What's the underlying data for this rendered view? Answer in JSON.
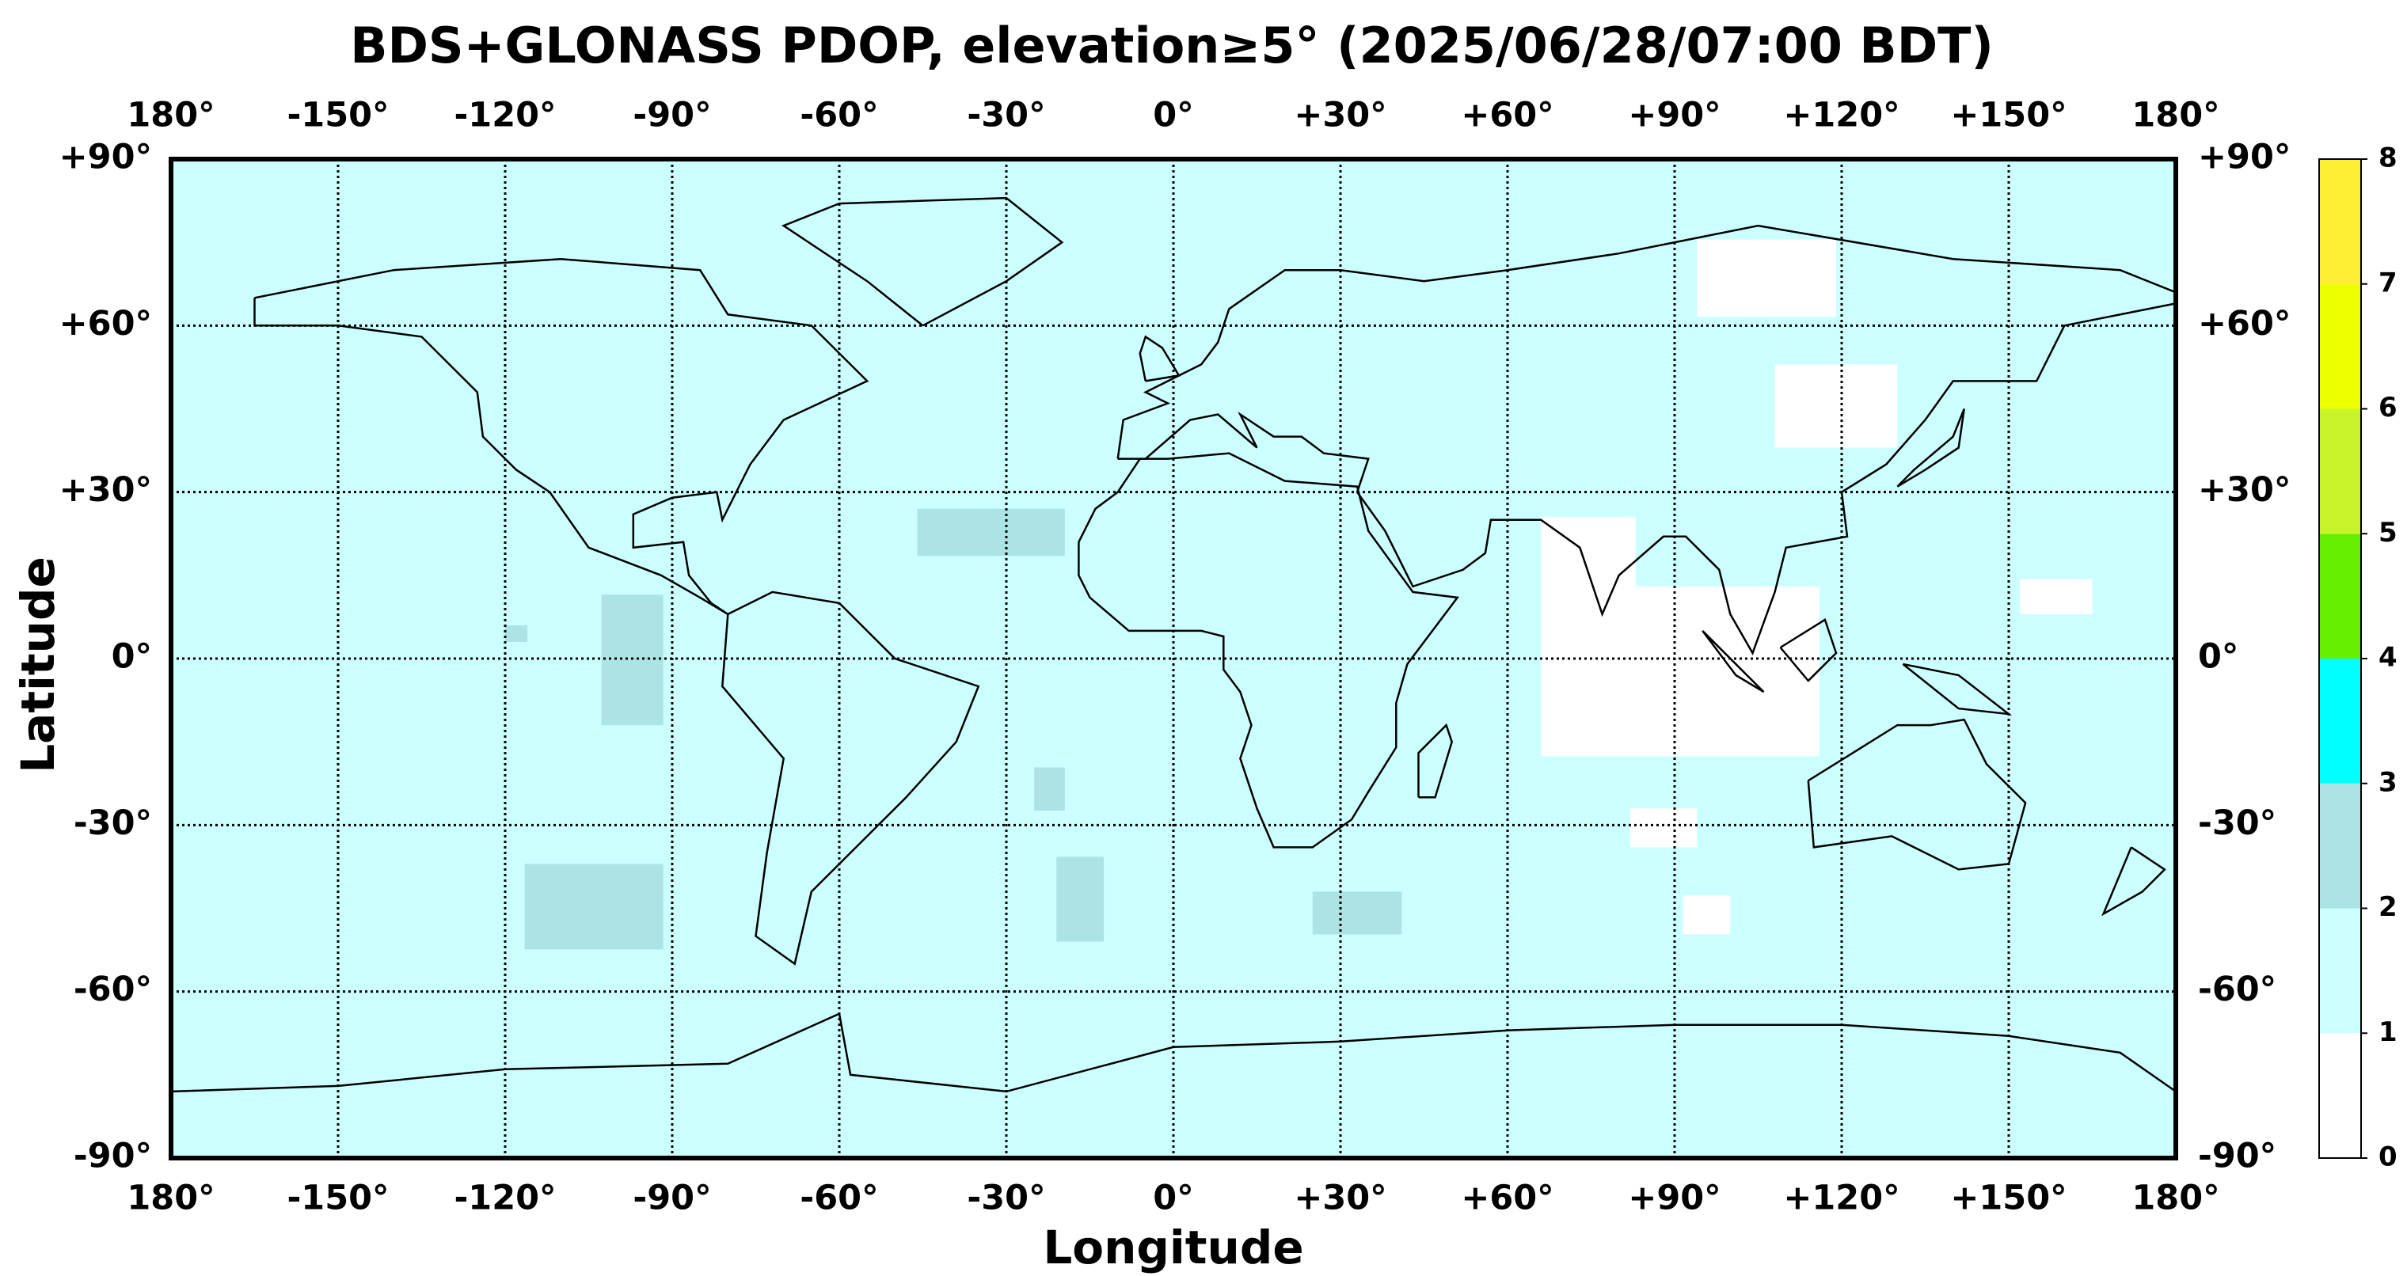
{
  "chart_data": {
    "type": "map",
    "title": "BDS+GLONASS PDOP, elevation≥5° (2025/06/28/07:00 BDT)",
    "x_label": "Longitude",
    "y_label": "Latitude",
    "xlim": [
      -180,
      180
    ],
    "ylim": [
      -90,
      90
    ],
    "xticks": [
      {
        "value": -180,
        "label": "180°"
      },
      {
        "value": -150,
        "label": "-150°"
      },
      {
        "value": -120,
        "label": "-120°"
      },
      {
        "value": -90,
        "label": "-90°"
      },
      {
        "value": -60,
        "label": "-60°"
      },
      {
        "value": -30,
        "label": "-30°"
      },
      {
        "value": 0,
        "label": "0°"
      },
      {
        "value": 30,
        "label": "+30°"
      },
      {
        "value": 60,
        "label": "+60°"
      },
      {
        "value": 90,
        "label": "+90°"
      },
      {
        "value": 120,
        "label": "+120°"
      },
      {
        "value": 150,
        "label": "+150°"
      },
      {
        "value": 180,
        "label": "180°"
      }
    ],
    "yticks": [
      {
        "value": 90,
        "label": "+90°"
      },
      {
        "value": 60,
        "label": "+60°"
      },
      {
        "value": 30,
        "label": "+30°"
      },
      {
        "value": 0,
        "label": "0°"
      },
      {
        "value": -30,
        "label": "-30°"
      },
      {
        "value": -60,
        "label": "-60°"
      },
      {
        "value": -90,
        "label": "-90°"
      }
    ],
    "grid": true,
    "colorbar": {
      "lim": [
        0,
        8
      ],
      "ticks": [
        0,
        1,
        2,
        3,
        4,
        5,
        6,
        7,
        8
      ],
      "colors": [
        "#ffffff",
        "#ccffff",
        "#ace4e4",
        "#00ffff",
        "#66f000",
        "#c8f52a",
        "#eeff00",
        "#ffee33"
      ]
    },
    "background_value": 1.5,
    "regions": [
      {
        "lon": [
          94,
          119
        ],
        "lat": [
          61.6,
          75.5
        ],
        "value": 0.8
      },
      {
        "lon": [
          108,
          130
        ],
        "lat": [
          38,
          53
        ],
        "value": 0.8
      },
      {
        "lon": [
          66,
          83
        ],
        "lat": [
          13,
          25.5
        ],
        "value": 0.8
      },
      {
        "lon": [
          66,
          116
        ],
        "lat": [
          -17.6,
          13
        ],
        "value": 0.8
      },
      {
        "lon": [
          152,
          165
        ],
        "lat": [
          8,
          14.3
        ],
        "value": 0.8
      },
      {
        "lon": [
          82,
          94
        ],
        "lat": [
          -34,
          -27
        ],
        "value": 0.8
      },
      {
        "lon": [
          91.5,
          100
        ],
        "lat": [
          -49.7,
          -42.7
        ],
        "value": 0.8
      },
      {
        "lon": [
          -46,
          -19.5
        ],
        "lat": [
          18.5,
          27
        ],
        "value": 2.3
      },
      {
        "lon": [
          -102.7,
          -91.6
        ],
        "lat": [
          -12,
          11.5
        ],
        "value": 2.3
      },
      {
        "lon": [
          -116.5,
          -91.6
        ],
        "lat": [
          -52.4,
          -37
        ],
        "value": 2.3
      },
      {
        "lon": [
          -25,
          -19.5
        ],
        "lat": [
          -27.4,
          -19.6
        ],
        "value": 2.3
      },
      {
        "lon": [
          -21,
          -12.5
        ],
        "lat": [
          -51,
          -35.7
        ],
        "value": 2.3
      },
      {
        "lon": [
          25,
          41
        ],
        "lat": [
          -49.7,
          -42
        ],
        "value": 2.3
      },
      {
        "lon": [
          -120,
          -116
        ],
        "lat": [
          3,
          6
        ],
        "value": 2.3
      }
    ]
  }
}
